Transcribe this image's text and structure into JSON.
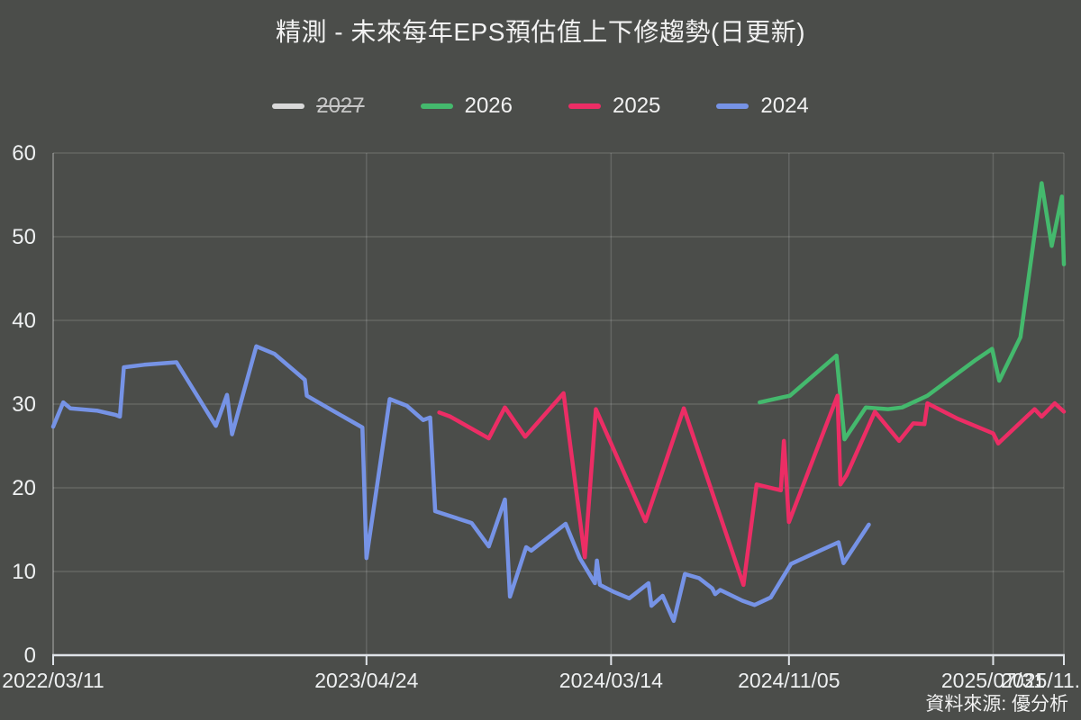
{
  "title": "精測 - 未來每年EPS預估值上下修趨勢(日更新)",
  "source_note": "資料來源: 優分析",
  "colors": {
    "background": "#4b4d4a",
    "grid": "rgba(255,255,255,0.14)",
    "axis": "#dfe3e8",
    "label": "#f1f1f1",
    "series_2027": "#d9d9d9",
    "series_2026": "#44b96d",
    "series_2025": "#ec2d65",
    "series_2024": "#7693e6"
  },
  "legend": [
    {
      "label": "2027",
      "color": "#d9d9d9",
      "hidden": true
    },
    {
      "label": "2026",
      "color": "#44b96d",
      "hidden": false
    },
    {
      "label": "2025",
      "color": "#ec2d65",
      "hidden": false
    },
    {
      "label": "2024",
      "color": "#7693e6",
      "hidden": false
    }
  ],
  "chart_data": {
    "type": "line",
    "title": "精測 - 未來每年EPS預估值上下修趨勢(日更新)",
    "ylabel": "",
    "xlabel": "",
    "ylim": [
      0,
      60
    ],
    "yticks": [
      0,
      10,
      20,
      30,
      40,
      50,
      60
    ],
    "grid": true,
    "legend_position": "top",
    "x_axis_note": "x positions are percent (0-100) along the date axis from 2022/03/11 to ~2025/11",
    "xticks": [
      {
        "label": "2022/03/11",
        "pct": 0,
        "clipped": false
      },
      {
        "label": "2023/04/24",
        "pct": 31.0,
        "clipped": false
      },
      {
        "label": "2024/03/14",
        "pct": 55.2,
        "clipped": false
      },
      {
        "label": "2024/11/05",
        "pct": 72.8,
        "clipped": false
      },
      {
        "label": "2025/07/31",
        "pct": 93.0,
        "clipped": false
      },
      {
        "label": "2025/11.",
        "pct": 100,
        "clipped": true
      }
    ],
    "series": [
      {
        "name": "2027",
        "color": "#d9d9d9",
        "hidden": true,
        "points": []
      },
      {
        "name": "2024",
        "color": "#7693e6",
        "hidden": false,
        "points": [
          [
            0,
            27.3
          ],
          [
            1.0,
            30.2
          ],
          [
            1.7,
            29.5
          ],
          [
            4.4,
            29.2
          ],
          [
            6.2,
            28.7
          ],
          [
            6.6,
            28.5
          ],
          [
            7.0,
            34.4
          ],
          [
            9.0,
            34.7
          ],
          [
            12.2,
            35.0
          ],
          [
            16.1,
            27.4
          ],
          [
            17.2,
            31.1
          ],
          [
            17.7,
            26.4
          ],
          [
            20.1,
            36.9
          ],
          [
            21.9,
            36.0
          ],
          [
            24.9,
            32.9
          ],
          [
            25.1,
            31.0
          ],
          [
            27.1,
            29.6
          ],
          [
            30.6,
            27.2
          ],
          [
            31.0,
            11.6
          ],
          [
            33.3,
            30.6
          ],
          [
            35.0,
            29.8
          ],
          [
            36.6,
            28.1
          ],
          [
            37.3,
            28.4
          ],
          [
            37.8,
            17.2
          ],
          [
            41.4,
            15.8
          ],
          [
            43.1,
            13.0
          ],
          [
            44.7,
            18.6
          ],
          [
            45.2,
            7.0
          ],
          [
            46.8,
            12.9
          ],
          [
            47.3,
            12.5
          ],
          [
            50.7,
            15.7
          ],
          [
            52.1,
            11.6
          ],
          [
            53.6,
            8.6
          ],
          [
            53.8,
            11.3
          ],
          [
            54.1,
            8.4
          ],
          [
            55.4,
            7.6
          ],
          [
            57.0,
            6.8
          ],
          [
            58.9,
            8.6
          ],
          [
            59.2,
            5.9
          ],
          [
            60.3,
            7.1
          ],
          [
            61.4,
            4.1
          ],
          [
            62.5,
            9.7
          ],
          [
            63.9,
            9.2
          ],
          [
            65.2,
            8.0
          ],
          [
            65.5,
            7.3
          ],
          [
            66.0,
            7.8
          ],
          [
            68.2,
            6.5
          ],
          [
            69.4,
            6.0
          ],
          [
            71.0,
            6.9
          ],
          [
            73.0,
            10.9
          ],
          [
            74.6,
            11.8
          ],
          [
            77.7,
            13.5
          ],
          [
            78.2,
            11.0
          ],
          [
            80.7,
            15.6
          ]
        ]
      },
      {
        "name": "2026",
        "color": "#44b96d",
        "hidden": false,
        "points": [
          [
            69.9,
            30.2
          ],
          [
            72.1,
            30.8
          ],
          [
            72.9,
            31.0
          ],
          [
            77.5,
            35.8
          ],
          [
            78.3,
            25.8
          ],
          [
            80.4,
            29.6
          ],
          [
            82.6,
            29.4
          ],
          [
            84.0,
            29.6
          ],
          [
            86.5,
            31.0
          ],
          [
            91.3,
            35.3
          ],
          [
            92.9,
            36.6
          ],
          [
            93.6,
            32.8
          ],
          [
            95.7,
            38.0
          ],
          [
            97.8,
            56.4
          ],
          [
            98.8,
            48.9
          ],
          [
            99.8,
            54.8
          ],
          [
            100,
            46.7
          ]
        ]
      },
      {
        "name": "2025",
        "color": "#ec2d65",
        "hidden": false,
        "points": [
          [
            38.2,
            29.0
          ],
          [
            39.3,
            28.5
          ],
          [
            43.1,
            25.9
          ],
          [
            44.7,
            29.6
          ],
          [
            46.7,
            26.1
          ],
          [
            50.5,
            31.3
          ],
          [
            52.6,
            11.7
          ],
          [
            53.7,
            29.4
          ],
          [
            58.6,
            16.0
          ],
          [
            62.4,
            29.5
          ],
          [
            68.3,
            8.4
          ],
          [
            69.6,
            20.4
          ],
          [
            72.0,
            19.7
          ],
          [
            72.3,
            25.6
          ],
          [
            72.8,
            15.9
          ],
          [
            77.6,
            31.0
          ],
          [
            77.9,
            20.4
          ],
          [
            78.5,
            21.5
          ],
          [
            81.3,
            29.1
          ],
          [
            83.7,
            25.6
          ],
          [
            85.1,
            27.7
          ],
          [
            86.2,
            27.6
          ],
          [
            86.5,
            30.1
          ],
          [
            89.4,
            28.3
          ],
          [
            93.0,
            26.5
          ],
          [
            93.5,
            25.3
          ],
          [
            97.1,
            29.4
          ],
          [
            97.8,
            28.5
          ],
          [
            99.1,
            30.1
          ],
          [
            100,
            29.1
          ]
        ]
      }
    ]
  }
}
